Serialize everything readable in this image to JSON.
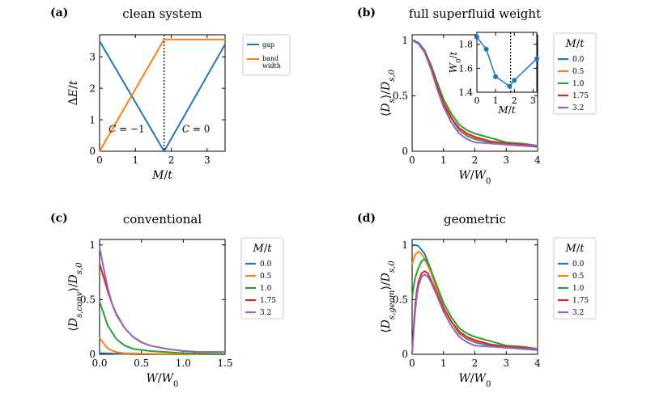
{
  "colors": {
    "blue": "#1f77b4",
    "orange": "#ff7f0e",
    "green": "#2ca02c",
    "red": "#d62728",
    "purple": "#9467bd"
  },
  "chart_data": [
    {
      "id": "a",
      "panel_label": "(a)",
      "type": "line",
      "title": "clean system",
      "xlabel": "M/t",
      "ylabel": "ΔE/t",
      "xlim": [
        0,
        3.5
      ],
      "ylim": [
        0,
        3.7
      ],
      "xticks": [
        0,
        1,
        2,
        3
      ],
      "yticks": [
        0,
        1,
        2,
        3
      ],
      "critical_x": 1.8,
      "series": [
        {
          "name": "gap",
          "color": "blue",
          "x": [
            0,
            1.8,
            3.5
          ],
          "y": [
            3.5,
            0,
            3.4
          ]
        },
        {
          "name": "band width",
          "label_lines": [
            "band",
            "width"
          ],
          "color": "orange",
          "x": [
            0,
            1.8,
            3.5
          ],
          "y": [
            0,
            3.55,
            3.55
          ]
        }
      ],
      "annotations": [
        {
          "text": "C = −1",
          "x": 0.25,
          "y": 0.6
        },
        {
          "text": "C = 0",
          "x": 2.3,
          "y": 0.6
        }
      ]
    },
    {
      "id": "b",
      "panel_label": "(b)",
      "type": "line",
      "title": "full superfluid weight",
      "xlabel": "W/W0",
      "ylabel": "⟨Ds⟩/Ds,0",
      "xlim": [
        0,
        4
      ],
      "ylim": [
        0,
        1.05
      ],
      "xticks": [
        0,
        1,
        2,
        3,
        4
      ],
      "yticks": [
        0,
        0.5,
        1
      ],
      "legend_title": "M/t",
      "series": [
        {
          "name": "0.0",
          "color": "blue",
          "x": [
            0,
            0.2,
            0.4,
            0.6,
            0.8,
            1.0,
            1.25,
            1.5,
            1.75,
            2.0,
            2.5,
            3.0,
            3.5,
            4.0
          ],
          "y": [
            1.0,
            0.98,
            0.91,
            0.77,
            0.6,
            0.43,
            0.3,
            0.19,
            0.14,
            0.11,
            0.08,
            0.06,
            0.05,
            0.04
          ]
        },
        {
          "name": "0.5",
          "color": "orange",
          "x": [
            0,
            0.2,
            0.4,
            0.6,
            0.8,
            1.0,
            1.25,
            1.5,
            1.75,
            2.0,
            2.5,
            3.0,
            3.5,
            4.0
          ],
          "y": [
            1.0,
            0.97,
            0.9,
            0.77,
            0.6,
            0.44,
            0.31,
            0.2,
            0.15,
            0.12,
            0.09,
            0.07,
            0.06,
            0.05
          ]
        },
        {
          "name": "1.0",
          "color": "green",
          "x": [
            0,
            0.2,
            0.4,
            0.6,
            0.8,
            1.0,
            1.25,
            1.5,
            1.75,
            2.0,
            2.5,
            3.0,
            3.5,
            4.0
          ],
          "y": [
            1.0,
            0.97,
            0.9,
            0.78,
            0.62,
            0.47,
            0.34,
            0.24,
            0.19,
            0.16,
            0.12,
            0.08,
            0.07,
            0.05
          ]
        },
        {
          "name": "1.75",
          "color": "red",
          "x": [
            0,
            0.2,
            0.4,
            0.6,
            0.8,
            1.0,
            1.25,
            1.5,
            1.75,
            2.0,
            2.5,
            3.0,
            3.5,
            4.0
          ],
          "y": [
            1.0,
            0.97,
            0.9,
            0.76,
            0.59,
            0.43,
            0.3,
            0.21,
            0.16,
            0.13,
            0.09,
            0.07,
            0.06,
            0.05
          ]
        },
        {
          "name": "3.2",
          "color": "purple",
          "x": [
            0,
            0.2,
            0.4,
            0.6,
            0.8,
            1.0,
            1.25,
            1.5,
            1.75,
            2.0,
            2.5,
            3.0,
            3.5,
            4.0
          ],
          "y": [
            1.0,
            0.97,
            0.89,
            0.74,
            0.56,
            0.4,
            0.26,
            0.16,
            0.11,
            0.08,
            0.07,
            0.06,
            0.05,
            0.05
          ]
        }
      ],
      "inset": {
        "type": "line",
        "xlabel": "M/t",
        "ylabel": "W0/t",
        "xlim": [
          0,
          3.2
        ],
        "ylim": [
          1.4,
          1.9
        ],
        "xticks": [
          0,
          1,
          2,
          3
        ],
        "yticks": [
          1.4,
          1.6,
          1.8
        ],
        "critical_x": 1.8,
        "color": "blue",
        "x": [
          0.0,
          0.5,
          1.0,
          1.75,
          2.0,
          3.2
        ],
        "y": [
          1.86,
          1.76,
          1.53,
          1.45,
          1.5,
          1.68
        ]
      }
    },
    {
      "id": "c",
      "panel_label": "(c)",
      "type": "line",
      "title": "conventional",
      "xlabel": "W/W0",
      "ylabel": "⟨Ds,conv⟩/Ds,0",
      "xlim": [
        0,
        1.5
      ],
      "ylim": [
        0,
        1.05
      ],
      "xticks": [
        0,
        0.5,
        1,
        1.5
      ],
      "xtick_labels": [
        "0.0",
        "0.5",
        "1.0",
        "1.5"
      ],
      "yticks": [
        0,
        0.5,
        1
      ],
      "legend_title": "M/t",
      "series": [
        {
          "name": "0.0",
          "color": "blue",
          "x": [
            0,
            0.05,
            0.2,
            0.5,
            1.0,
            1.5
          ],
          "y": [
            0.01,
            0.01,
            0.005,
            0.0,
            0.0,
            0.0
          ]
        },
        {
          "name": "0.5",
          "color": "orange",
          "x": [
            0,
            0.05,
            0.1,
            0.2,
            0.3,
            0.5,
            1.0,
            1.5
          ],
          "y": [
            0.15,
            0.1,
            0.05,
            0.02,
            0.01,
            0.005,
            0.0,
            0.0
          ]
        },
        {
          "name": "1.0",
          "color": "green",
          "x": [
            0,
            0.05,
            0.1,
            0.2,
            0.3,
            0.4,
            0.6,
            0.8,
            1.0,
            1.5
          ],
          "y": [
            0.48,
            0.37,
            0.26,
            0.14,
            0.08,
            0.05,
            0.03,
            0.02,
            0.01,
            0.0
          ]
        },
        {
          "name": "1.75",
          "color": "red",
          "x": [
            0,
            0.05,
            0.1,
            0.15,
            0.2,
            0.3,
            0.4,
            0.5,
            0.6,
            0.8,
            1.0,
            1.2,
            1.5
          ],
          "y": [
            0.83,
            0.7,
            0.57,
            0.46,
            0.37,
            0.24,
            0.16,
            0.11,
            0.08,
            0.05,
            0.03,
            0.02,
            0.02
          ]
        },
        {
          "name": "3.2",
          "color": "purple",
          "x": [
            0,
            0.05,
            0.1,
            0.15,
            0.2,
            0.3,
            0.4,
            0.5,
            0.6,
            0.8,
            1.0,
            1.2,
            1.5
          ],
          "y": [
            0.98,
            0.78,
            0.6,
            0.46,
            0.36,
            0.24,
            0.16,
            0.11,
            0.08,
            0.05,
            0.03,
            0.02,
            0.02
          ]
        }
      ]
    },
    {
      "id": "d",
      "panel_label": "(d)",
      "type": "line",
      "title": "geometric",
      "xlabel": "W/W0",
      "ylabel": "⟨Ds,geom⟩/Ds,0",
      "xlim": [
        0,
        4
      ],
      "ylim": [
        0,
        1.05
      ],
      "xticks": [
        0,
        1,
        2,
        3,
        4
      ],
      "yticks": [
        0,
        0.5,
        1
      ],
      "legend_title": "M/t",
      "series": [
        {
          "name": "0.0",
          "color": "blue",
          "x": [
            0,
            0.1,
            0.2,
            0.4,
            0.6,
            0.8,
            1.0,
            1.25,
            1.5,
            1.75,
            2.0,
            2.5,
            3.0,
            3.5,
            4.0
          ],
          "y": [
            0.99,
            1.0,
            0.99,
            0.92,
            0.77,
            0.6,
            0.43,
            0.3,
            0.19,
            0.14,
            0.11,
            0.08,
            0.06,
            0.05,
            0.04
          ]
        },
        {
          "name": "0.5",
          "color": "orange",
          "x": [
            0,
            0.05,
            0.1,
            0.2,
            0.3,
            0.4,
            0.6,
            0.8,
            1.0,
            1.25,
            1.5,
            1.75,
            2.0,
            2.5,
            3.0,
            3.5,
            4.0
          ],
          "y": [
            0.82,
            0.87,
            0.91,
            0.94,
            0.92,
            0.87,
            0.75,
            0.58,
            0.43,
            0.3,
            0.2,
            0.15,
            0.12,
            0.09,
            0.07,
            0.06,
            0.05
          ]
        },
        {
          "name": "1.0",
          "color": "green",
          "x": [
            0,
            0.05,
            0.1,
            0.2,
            0.3,
            0.4,
            0.5,
            0.6,
            0.8,
            1.0,
            1.25,
            1.5,
            1.75,
            2.0,
            2.5,
            3.0,
            3.5,
            4.0
          ],
          "y": [
            0.52,
            0.62,
            0.7,
            0.79,
            0.85,
            0.87,
            0.84,
            0.77,
            0.62,
            0.47,
            0.34,
            0.24,
            0.19,
            0.16,
            0.12,
            0.08,
            0.07,
            0.05
          ]
        },
        {
          "name": "1.75",
          "color": "red",
          "x": [
            0,
            0.03,
            0.06,
            0.1,
            0.15,
            0.2,
            0.3,
            0.4,
            0.5,
            0.6,
            0.8,
            1.0,
            1.25,
            1.5,
            1.75,
            2.0,
            2.5,
            3.0,
            3.5,
            4.0
          ],
          "y": [
            0.0,
            0.15,
            0.3,
            0.45,
            0.58,
            0.66,
            0.74,
            0.76,
            0.74,
            0.68,
            0.55,
            0.42,
            0.3,
            0.21,
            0.16,
            0.13,
            0.09,
            0.07,
            0.06,
            0.05
          ]
        },
        {
          "name": "3.2",
          "color": "purple",
          "x": [
            0,
            0.03,
            0.06,
            0.1,
            0.15,
            0.2,
            0.3,
            0.4,
            0.5,
            0.6,
            0.8,
            1.0,
            1.25,
            1.5,
            1.75,
            2.0,
            2.5,
            3.0,
            3.5,
            4.0
          ],
          "y": [
            0.0,
            0.12,
            0.25,
            0.4,
            0.53,
            0.62,
            0.71,
            0.73,
            0.71,
            0.66,
            0.53,
            0.39,
            0.26,
            0.16,
            0.11,
            0.08,
            0.07,
            0.06,
            0.05,
            0.05
          ]
        }
      ]
    }
  ]
}
